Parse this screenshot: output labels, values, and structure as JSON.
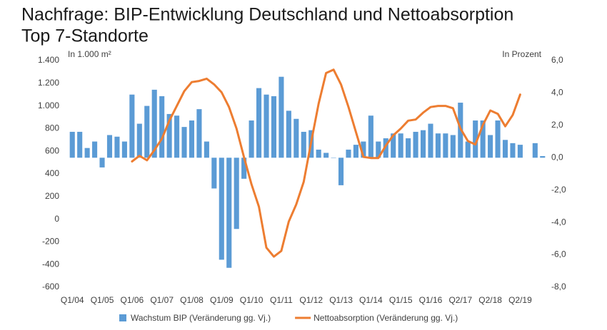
{
  "chart_data": {
    "type": "bar-line",
    "title": "Nachfrage: BIP-Entwicklung Deutschland und Nettoabsorption",
    "subtitle": "Top 7-Standorte",
    "y_label": "In 1.000 m²",
    "y2_label": "In Prozent",
    "categories": [
      "Q1/04",
      null,
      null,
      null,
      "Q1/05",
      null,
      null,
      null,
      "Q1/06",
      null,
      null,
      null,
      "Q1/07",
      null,
      null,
      null,
      "Q1/08",
      null,
      null,
      null,
      "Q1/09",
      null,
      null,
      null,
      "Q1/10",
      null,
      null,
      null,
      "Q1/11",
      null,
      null,
      null,
      "Q1/12",
      null,
      null,
      null,
      "Q1/13",
      null,
      null,
      null,
      "Q1/14",
      null,
      null,
      null,
      "Q1/15",
      null,
      null,
      null,
      "Q1/16",
      null,
      null,
      null,
      "Q2/17",
      null,
      null,
      null,
      "Q2/18",
      null,
      null,
      null,
      "Q2/19",
      null,
      null,
      null
    ],
    "series": [
      {
        "name": "Wachstum BIP (Veränderung gg. Vj.)",
        "color": "#5b9bd5",
        "kind": "bar",
        "axis": "y2",
        "values": [
          1.6,
          1.6,
          0.6,
          1.0,
          -0.6,
          1.4,
          1.3,
          1.0,
          3.9,
          2.1,
          3.2,
          4.2,
          3.8,
          2.7,
          2.6,
          1.9,
          2.3,
          3.0,
          1.0,
          -1.9,
          -6.3,
          -6.8,
          -4.4,
          -1.3,
          2.3,
          4.3,
          3.9,
          3.8,
          5.0,
          2.9,
          2.4,
          1.6,
          1.7,
          0.5,
          0.3,
          0.0,
          -1.7,
          0.5,
          0.8,
          1.0,
          2.6,
          1.0,
          1.2,
          1.5,
          1.5,
          1.2,
          1.6,
          1.7,
          2.1,
          1.5,
          1.5,
          1.4,
          3.4,
          1.0,
          2.3,
          2.3,
          1.4,
          2.3,
          1.1,
          0.9,
          0.8,
          null,
          0.9,
          0.1
        ]
      },
      {
        "name": "Nettoabsorption (Veränderung gg. Vj.)",
        "color": "#ed7d31",
        "kind": "line",
        "axis": "y",
        "values": [
          null,
          null,
          null,
          null,
          null,
          null,
          null,
          null,
          510,
          560,
          520,
          610,
          710,
          870,
          1000,
          1130,
          1210,
          1220,
          1240,
          1190,
          1120,
          990,
          800,
          550,
          310,
          110,
          -250,
          -330,
          -280,
          -20,
          130,
          330,
          680,
          1020,
          1290,
          1320,
          1190,
          990,
          770,
          550,
          540,
          540,
          650,
          740,
          800,
          870,
          880,
          940,
          990,
          1000,
          1000,
          980,
          800,
          690,
          660,
          830,
          960,
          930,
          820,
          920,
          1100,
          null,
          null,
          null
        ]
      }
    ],
    "ylim": [
      -600,
      1400
    ],
    "yticks": [
      {
        "value": 1400,
        "label": "1.400"
      },
      {
        "value": 1200,
        "label": "1.200"
      },
      {
        "value": 1000,
        "label": "1.000"
      },
      800,
      600,
      400,
      200,
      0,
      -200,
      -400,
      -600
    ],
    "y2lim": [
      -8,
      6
    ],
    "y2ticks": [
      {
        "value": 6,
        "label": "6,0"
      },
      {
        "value": 4,
        "label": "4,0"
      },
      {
        "value": 2,
        "label": "2,0"
      },
      {
        "value": 0,
        "label": "0,0"
      },
      {
        "value": -2,
        "label": "-2,0"
      },
      {
        "value": -4,
        "label": "-4,0"
      },
      {
        "value": -6,
        "label": "-6,0"
      },
      {
        "value": -8,
        "label": "-8,0"
      }
    ],
    "grid": false,
    "legend": "bottom"
  }
}
